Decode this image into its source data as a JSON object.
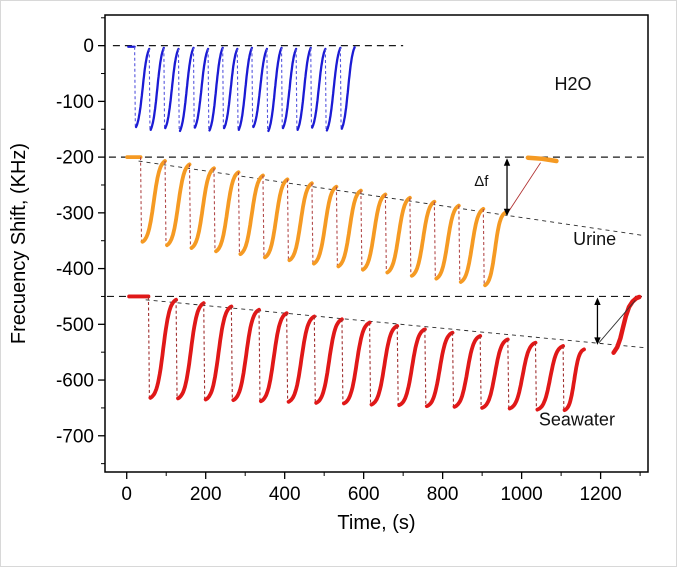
{
  "chart_data": {
    "type": "line",
    "title": "",
    "xlabel": "Time, (s)",
    "ylabel": "Frecuency Shift, (KHz)",
    "xlim": [
      -55,
      1320
    ],
    "ylim": [
      -765,
      55
    ],
    "xticks": [
      0,
      200,
      400,
      600,
      800,
      1000,
      1200
    ],
    "yticks": [
      0,
      -100,
      -200,
      -300,
      -400,
      -500,
      -600,
      -700
    ],
    "x_minor_step": 100,
    "y_minor_step": 50,
    "grid": false,
    "legend": "none",
    "series": [
      {
        "name": "H2O",
        "color": "#1b1bd4",
        "drop_color": "#5555dd",
        "line_width": 2.3,
        "sigmoid_k": 5.5,
        "drop_frac": 0.1,
        "lead_from": 4,
        "end": 577,
        "starts": [
          20,
          57,
          94,
          131,
          169,
          206,
          243,
          280,
          317,
          355,
          392,
          429,
          466,
          503,
          541
        ],
        "peaks": [
          -2,
          -6,
          -4,
          -6,
          -4,
          -6,
          -4,
          -6,
          -4,
          -6,
          -4,
          -6,
          -4,
          -6,
          -4,
          -3
        ],
        "troughs": [
          -146,
          -151,
          -148,
          -153,
          -147,
          -152,
          -148,
          -151,
          -146,
          -153,
          -148,
          -151,
          -147,
          -152,
          -149
        ]
      },
      {
        "name": "Urine",
        "color": "#f59a23",
        "drop_color": "#b24a4a",
        "line_width": 3.8,
        "sigmoid_k": 7.5,
        "drop_frac": 0.08,
        "lead_from": 1,
        "end": 958,
        "starts": [
          35,
          97,
          159,
          221,
          283,
          345,
          407,
          469,
          531,
          593,
          655,
          717,
          779,
          841,
          903
        ],
        "peaks": [
          -200,
          -207,
          -213,
          -220,
          -227,
          -233,
          -240,
          -247,
          -253,
          -260,
          -267,
          -273,
          -280,
          -287,
          -293,
          -300
        ],
        "troughs": [
          -352,
          -358,
          -363,
          -369,
          -374,
          -380,
          -385,
          -391,
          -396,
          -402,
          -407,
          -413,
          -418,
          -424,
          -430
        ]
      },
      {
        "name": "Seawater",
        "color": "#e01818",
        "drop_color": "#a03030",
        "line_width": 3.8,
        "sigmoid_k": 8,
        "drop_frac": 0.07,
        "lead_from": 6,
        "end": 1158,
        "starts": [
          55,
          125,
          195,
          265,
          335,
          405,
          475,
          545,
          615,
          685,
          755,
          825,
          895,
          965,
          1035,
          1105
        ],
        "peaks": [
          -450,
          -456,
          -462,
          -468,
          -474,
          -480,
          -486,
          -491,
          -497,
          -503,
          -509,
          -515,
          -521,
          -527,
          -533,
          -539,
          -545
        ],
        "troughs": [
          -632,
          -633,
          -635,
          -636,
          -638,
          -639,
          -641,
          -642,
          -644,
          -645,
          -647,
          -648,
          -650,
          -651,
          -653,
          -654
        ]
      }
    ],
    "extra_segments": [
      {
        "name": "urine-recovered-segment",
        "color": "#f59a23",
        "width": 4.5,
        "points": [
          [
            1016,
            -201
          ],
          [
            1034,
            -202
          ],
          [
            1052,
            -203
          ],
          [
            1070,
            -205
          ],
          [
            1088,
            -207
          ]
        ]
      },
      {
        "name": "seawater-recovered-segment",
        "color": "#e01818",
        "width": 4.5,
        "points": [
          [
            1233,
            -551
          ],
          [
            1242,
            -541
          ],
          [
            1250,
            -525
          ],
          [
            1257,
            -505
          ],
          [
            1264,
            -485
          ],
          [
            1272,
            -469
          ],
          [
            1281,
            -459
          ],
          [
            1291,
            -453
          ],
          [
            1298,
            -451
          ]
        ]
      }
    ],
    "guide_lines": [
      {
        "name": "h2o-baseline-dashed",
        "x1": -35,
        "y1": 0,
        "x2": 700,
        "y2": 0,
        "color": "#1a1a1a",
        "width": 1.2,
        "dash": "7 5"
      },
      {
        "name": "urine-baseline-dashed",
        "x1": -45,
        "y1": -200,
        "x2": 1312,
        "y2": -200,
        "color": "#1a1a1a",
        "width": 1.2,
        "dash": "7 5"
      },
      {
        "name": "seawater-baseline-dashed",
        "x1": -50,
        "y1": -450,
        "x2": 1312,
        "y2": -450,
        "color": "#1a1a1a",
        "width": 1.2,
        "dash": "7 5"
      },
      {
        "name": "urine-drift-line",
        "x1": 30,
        "y1": -207,
        "x2": 1312,
        "y2": -341,
        "color": "#2a2a2a",
        "width": 0.9,
        "dash": "4 4"
      },
      {
        "name": "seawater-drift-line",
        "x1": 48,
        "y1": -456,
        "x2": 1312,
        "y2": -542,
        "color": "#2a2a2a",
        "width": 0.9,
        "dash": "4 4"
      }
    ],
    "arrows": [
      {
        "name": "delta-f-arrow-urine",
        "x": 963,
        "y1": -202,
        "y2": -306
      },
      {
        "name": "delta-f-arrow-seawater",
        "x": 1192,
        "y1": -452,
        "y2": -537
      }
    ],
    "leaders": [
      {
        "name": "urine-leader-line",
        "x1": 1048,
        "y1": -210,
        "x2": 962,
        "y2": -303,
        "color": "#b03030"
      },
      {
        "name": "seawater-leader-line",
        "x1": 1288,
        "y1": -457,
        "x2": 1196,
        "y2": -533,
        "color": "#333333"
      }
    ],
    "annotations": [
      {
        "name": "label-h2o",
        "text": "H2O",
        "x": 1130,
        "y": -80,
        "size": 18
      },
      {
        "name": "label-urine",
        "text": "Urine",
        "x": 1185,
        "y": -358,
        "size": 18
      },
      {
        "name": "label-seawater",
        "text": "Seawater",
        "x": 1140,
        "y": -682,
        "size": 18
      },
      {
        "name": "label-delta-f",
        "text": "Δf",
        "x": 898,
        "y": -252,
        "size": 15
      }
    ]
  }
}
